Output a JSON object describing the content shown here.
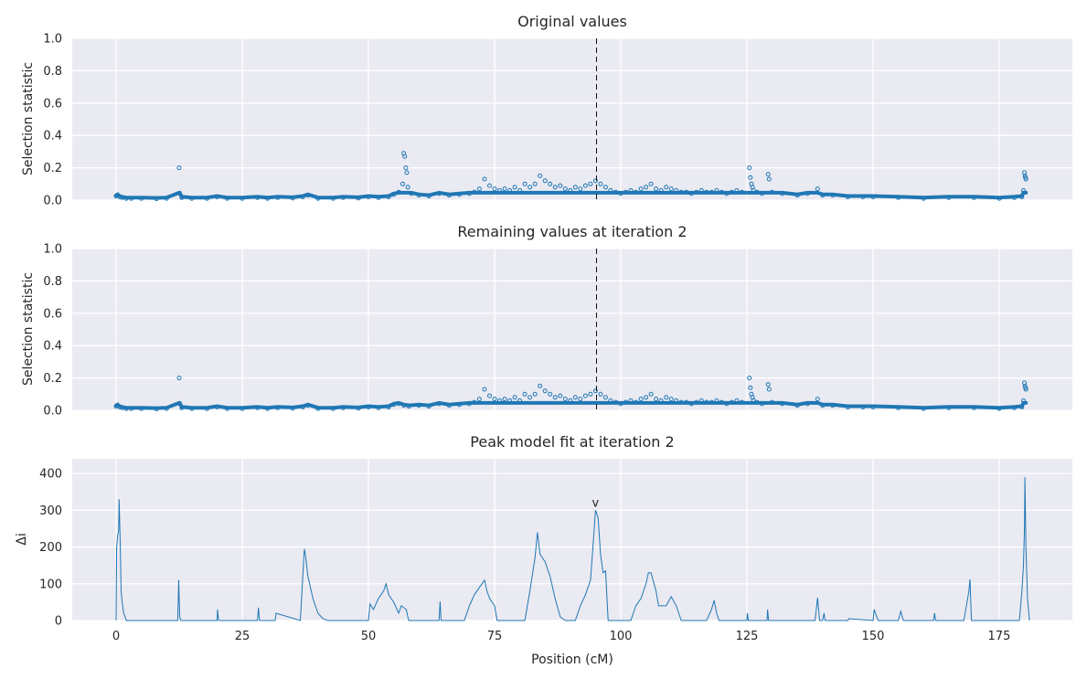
{
  "chart_data": [
    {
      "type": "scatter",
      "title": "Original values",
      "ylabel": "Selection statistic",
      "xlabel": "",
      "xlim": [
        -8.7,
        189.5
      ],
      "ylim": [
        0,
        1.0
      ],
      "yticks": [
        "0.0",
        "0.2",
        "0.4",
        "0.6",
        "0.8",
        "1.0"
      ],
      "ytick_values": [
        0,
        0.2,
        0.4,
        0.6,
        0.8,
        1.0
      ],
      "xtick_values": [
        0,
        25,
        50,
        75,
        100,
        125,
        150,
        175
      ],
      "grid": true,
      "vline_x": 95.2,
      "marker": "open-circle",
      "color": "#1f77b4",
      "series": [
        {
          "x": [
            0.0,
            0.3,
            0.7,
            1.2,
            2,
            3,
            5,
            8,
            10,
            12.5,
            12.6,
            13,
            15,
            18,
            20,
            22,
            25,
            28,
            30,
            32,
            35,
            37,
            38,
            40,
            43,
            45,
            48,
            50,
            52,
            54,
            55,
            56,
            56.8,
            57.0,
            57.2,
            57.4,
            57.6,
            57.8,
            58.5,
            60,
            62,
            64,
            66,
            68,
            70,
            71,
            72,
            73,
            74,
            75,
            76,
            77,
            78,
            79,
            80,
            81,
            82,
            83,
            84,
            85,
            86,
            87,
            88,
            89,
            90,
            91,
            92,
            93,
            94,
            95,
            96,
            97,
            98,
            99,
            100,
            101,
            102,
            103,
            104,
            105,
            106,
            107,
            108,
            109,
            110,
            111,
            112,
            113,
            114,
            115,
            116,
            117,
            118,
            119,
            120,
            121,
            122,
            123,
            124,
            125.5,
            125.7,
            125.9,
            126.1,
            126.3,
            127,
            128,
            129.2,
            129.4,
            130,
            132,
            135,
            137,
            139,
            140,
            142,
            145,
            148,
            150,
            155,
            160,
            165,
            170,
            175,
            178,
            179.5,
            179.8,
            180.0,
            180.1,
            180.2,
            180.3
          ],
          "y": [
            0.025,
            0.03,
            0.02,
            0.015,
            0.01,
            0.01,
            0.01,
            0.008,
            0.01,
            0.2,
            0.04,
            0.015,
            0.01,
            0.01,
            0.02,
            0.01,
            0.01,
            0.015,
            0.01,
            0.015,
            0.012,
            0.02,
            0.03,
            0.01,
            0.01,
            0.015,
            0.012,
            0.02,
            0.015,
            0.02,
            0.035,
            0.05,
            0.1,
            0.29,
            0.27,
            0.2,
            0.17,
            0.08,
            0.04,
            0.03,
            0.025,
            0.04,
            0.03,
            0.035,
            0.04,
            0.05,
            0.07,
            0.13,
            0.09,
            0.07,
            0.06,
            0.07,
            0.06,
            0.08,
            0.06,
            0.1,
            0.08,
            0.1,
            0.15,
            0.12,
            0.1,
            0.08,
            0.09,
            0.07,
            0.06,
            0.08,
            0.07,
            0.09,
            0.1,
            0.12,
            0.1,
            0.08,
            0.06,
            0.05,
            0.04,
            0.05,
            0.06,
            0.05,
            0.07,
            0.08,
            0.1,
            0.07,
            0.06,
            0.08,
            0.07,
            0.06,
            0.05,
            0.05,
            0.04,
            0.05,
            0.06,
            0.05,
            0.05,
            0.06,
            0.05,
            0.04,
            0.05,
            0.06,
            0.05,
            0.2,
            0.14,
            0.1,
            0.08,
            0.06,
            0.05,
            0.04,
            0.16,
            0.13,
            0.05,
            0.04,
            0.03,
            0.04,
            0.07,
            0.03,
            0.03,
            0.02,
            0.02,
            0.02,
            0.015,
            0.01,
            0.015,
            0.015,
            0.01,
            0.015,
            0.02,
            0.06,
            0.17,
            0.15,
            0.14,
            0.13
          ]
        }
      ]
    },
    {
      "type": "scatter",
      "title": "Remaining values at iteration 2",
      "ylabel": "Selection statistic",
      "xlabel": "",
      "xlim": [
        -8.7,
        189.5
      ],
      "ylim": [
        0,
        1.0
      ],
      "yticks": [
        "0.0",
        "0.2",
        "0.4",
        "0.6",
        "0.8",
        "1.0"
      ],
      "ytick_values": [
        0,
        0.2,
        0.4,
        0.6,
        0.8,
        1.0
      ],
      "xtick_values": [
        0,
        25,
        50,
        75,
        100,
        125,
        150,
        175
      ],
      "grid": true,
      "vline_x": 95.2,
      "marker": "open-circle",
      "color": "#1f77b4",
      "series": [
        {
          "x": [
            0.0,
            0.3,
            0.7,
            1.2,
            2,
            3,
            5,
            8,
            10,
            12.5,
            12.6,
            13,
            15,
            18,
            20,
            22,
            25,
            28,
            30,
            32,
            35,
            37,
            38,
            40,
            43,
            45,
            48,
            50,
            52,
            54,
            55,
            56,
            57,
            58,
            60,
            62,
            64,
            66,
            68,
            70,
            71,
            72,
            73,
            74,
            75,
            76,
            77,
            78,
            79,
            80,
            81,
            82,
            83,
            84,
            85,
            86,
            87,
            88,
            89,
            90,
            91,
            92,
            93,
            94,
            95,
            96,
            97,
            98,
            99,
            100,
            101,
            102,
            103,
            104,
            105,
            106,
            107,
            108,
            109,
            110,
            111,
            112,
            113,
            114,
            115,
            116,
            117,
            118,
            119,
            120,
            121,
            122,
            123,
            124,
            125.5,
            125.7,
            125.9,
            126.1,
            126.3,
            127,
            128,
            129.2,
            129.4,
            130,
            132,
            135,
            137,
            139,
            140,
            142,
            145,
            148,
            150,
            155,
            160,
            165,
            170,
            175,
            178,
            179.5,
            179.8,
            180.0,
            180.1,
            180.2,
            180.3
          ],
          "y": [
            0.025,
            0.03,
            0.02,
            0.015,
            0.01,
            0.01,
            0.01,
            0.008,
            0.01,
            0.2,
            0.04,
            0.015,
            0.01,
            0.01,
            0.02,
            0.01,
            0.01,
            0.015,
            0.01,
            0.015,
            0.012,
            0.02,
            0.03,
            0.01,
            0.01,
            0.015,
            0.012,
            0.02,
            0.015,
            0.02,
            0.035,
            0.04,
            0.03,
            0.025,
            0.03,
            0.025,
            0.04,
            0.03,
            0.035,
            0.04,
            0.05,
            0.07,
            0.13,
            0.09,
            0.07,
            0.06,
            0.07,
            0.06,
            0.08,
            0.06,
            0.1,
            0.08,
            0.1,
            0.15,
            0.12,
            0.1,
            0.08,
            0.09,
            0.07,
            0.06,
            0.08,
            0.07,
            0.09,
            0.1,
            0.12,
            0.1,
            0.08,
            0.06,
            0.05,
            0.04,
            0.05,
            0.06,
            0.05,
            0.07,
            0.08,
            0.1,
            0.07,
            0.06,
            0.08,
            0.07,
            0.06,
            0.05,
            0.05,
            0.04,
            0.05,
            0.06,
            0.05,
            0.05,
            0.06,
            0.05,
            0.04,
            0.05,
            0.06,
            0.05,
            0.2,
            0.14,
            0.1,
            0.08,
            0.06,
            0.05,
            0.04,
            0.16,
            0.13,
            0.05,
            0.04,
            0.03,
            0.04,
            0.07,
            0.03,
            0.03,
            0.02,
            0.02,
            0.02,
            0.015,
            0.01,
            0.015,
            0.015,
            0.01,
            0.015,
            0.02,
            0.06,
            0.17,
            0.15,
            0.14,
            0.13
          ]
        }
      ]
    },
    {
      "type": "line",
      "title": "Peak model fit at iteration 2",
      "ylabel": "Δi",
      "xlabel": "Position (cM)",
      "xlim": [
        -8.7,
        189.5
      ],
      "ylim": [
        0,
        440
      ],
      "yticks": [
        "0",
        "100",
        "200",
        "300",
        "400"
      ],
      "ytick_values": [
        0,
        100,
        200,
        300,
        400
      ],
      "xticks": [
        "0",
        "25",
        "50",
        "75",
        "100",
        "125",
        "150",
        "175"
      ],
      "xtick_values": [
        0,
        25,
        50,
        75,
        100,
        125,
        150,
        175
      ],
      "grid": true,
      "color": "#1f77b4",
      "annotations": [
        {
          "text": "v",
          "x": 95.0,
          "y": 300
        }
      ],
      "series": [
        {
          "x": [
            0,
            0.1,
            0.3,
            0.5,
            0.6,
            0.8,
            1.0,
            1.2,
            1.5,
            1.8,
            2.0,
            12.2,
            12.4,
            12.5,
            12.6,
            12.8,
            20.0,
            20.1,
            20.3,
            28.0,
            28.2,
            28.4,
            31.5,
            31.7,
            36.5,
            37.0,
            37.3,
            37.6,
            38.0,
            39.0,
            40.0,
            41.0,
            42.0,
            50.0,
            50.3,
            51.0,
            52.0,
            53.0,
            53.5,
            54.0,
            55.0,
            56.0,
            56.5,
            57.5,
            57.8,
            58.0,
            64.0,
            64.2,
            64.4,
            69.0,
            70.0,
            71.0,
            72.0,
            72.5,
            73.0,
            73.5,
            74.0,
            75.0,
            75.5,
            81.0,
            82.0,
            83.0,
            83.5,
            84.0,
            85.0,
            86.0,
            87.0,
            88.0,
            89.0,
            91.0,
            92.0,
            93.0,
            94.0,
            94.5,
            95.0,
            95.5,
            96.0,
            96.5,
            97.0,
            97.5,
            102.0,
            103.0,
            104.0,
            105.0,
            105.5,
            106.0,
            107.0,
            107.5,
            109.0,
            110.0,
            111.0,
            112.0,
            117.0,
            118.0,
            118.5,
            119.0,
            119.5,
            125.0,
            125.1,
            125.3,
            129.0,
            129.1,
            129.3,
            138.5,
            139.0,
            139.4,
            140.0,
            140.3,
            140.5,
            145.0,
            145.2,
            150.0,
            150.2,
            150.6,
            151.0,
            155.0,
            155.5,
            156.0,
            162.0,
            162.2,
            162.4,
            168.0,
            168.5,
            169.0,
            169.2,
            169.5,
            179.0,
            179.5,
            179.8,
            180.0,
            180.1,
            180.3,
            180.6,
            181.0
          ],
          "y": [
            0,
            200,
            230,
            245,
            330,
            220,
            80,
            50,
            20,
            10,
            0,
            0,
            110,
            60,
            10,
            0,
            0,
            30,
            0,
            0,
            35,
            0,
            0,
            20,
            0,
            120,
            195,
            170,
            120,
            60,
            20,
            5,
            0,
            0,
            45,
            30,
            60,
            80,
            100,
            70,
            50,
            20,
            40,
            30,
            10,
            0,
            0,
            52,
            0,
            0,
            40,
            70,
            90,
            100,
            110,
            80,
            60,
            40,
            0,
            0,
            80,
            170,
            240,
            180,
            160,
            120,
            60,
            10,
            0,
            0,
            40,
            70,
            110,
            200,
            300,
            280,
            180,
            130,
            135,
            0,
            0,
            40,
            60,
            100,
            130,
            130,
            80,
            40,
            40,
            65,
            40,
            0,
            0,
            30,
            55,
            20,
            0,
            0,
            20,
            0,
            0,
            30,
            0,
            0,
            62,
            0,
            0,
            20,
            0,
            0,
            5,
            0,
            30,
            15,
            0,
            0,
            25,
            0,
            0,
            20,
            0,
            0,
            40,
            80,
            112,
            0,
            0,
            80,
            150,
            250,
            390,
            200,
            60,
            0
          ]
        }
      ]
    }
  ]
}
